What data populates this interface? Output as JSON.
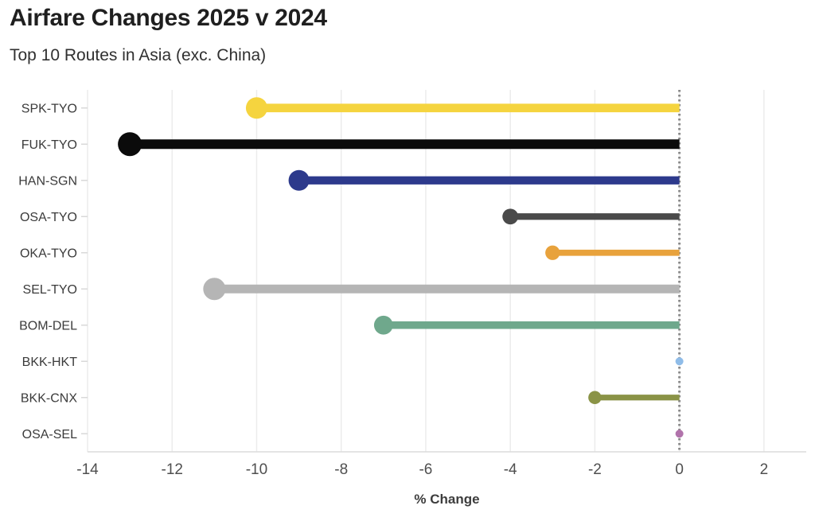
{
  "header": {
    "title": "Airfare Changes 2025 v 2024",
    "subtitle": "Top 10 Routes in Asia (exc. China)"
  },
  "chart_data": {
    "type": "bar",
    "variant": "horizontal-lollipop",
    "title": "Airfare Changes 2025 v 2024",
    "subtitle": "Top 10 Routes in Asia (exc. China)",
    "categories": [
      "SPK-TYO",
      "FUK-TYO",
      "HAN-SGN",
      "OSA-TYO",
      "OKA-TYO",
      "SEL-TYO",
      "BOM-DEL",
      "BKK-HKT",
      "BKK-CNX",
      "OSA-SEL"
    ],
    "values": [
      -10,
      -13,
      -9,
      -4,
      -3,
      -11,
      -7,
      0,
      -2,
      0
    ],
    "colors": [
      "#F5D43F",
      "#0B0B0B",
      "#2D3A8C",
      "#4A4A4A",
      "#E8A23C",
      "#B5B5B5",
      "#6FA88C",
      "#8FBCE8",
      "#8A9346",
      "#B173AB"
    ],
    "xlabel": "% Change",
    "ylabel": "",
    "xlim": [
      -14,
      3
    ],
    "xticks": [
      -14,
      -12,
      -10,
      -8,
      -6,
      -4,
      -2,
      0,
      2
    ],
    "baseline": 0,
    "grid": "vertical",
    "zero_line_style": "dotted",
    "legend": "none"
  },
  "colors": {
    "background": "#FFFFFF",
    "title_text": "#1F1F1F",
    "subtitle_text": "#303030",
    "axis_label_text": "#3D3D3D",
    "tick_text": "#4F4F4F",
    "category_text": "#3B3B3B",
    "gridline": "#ECECEC",
    "axis_line": "#DBDBDB",
    "tick_mark": "#D9D9D9",
    "zero_line": "#8A8A8A"
  }
}
